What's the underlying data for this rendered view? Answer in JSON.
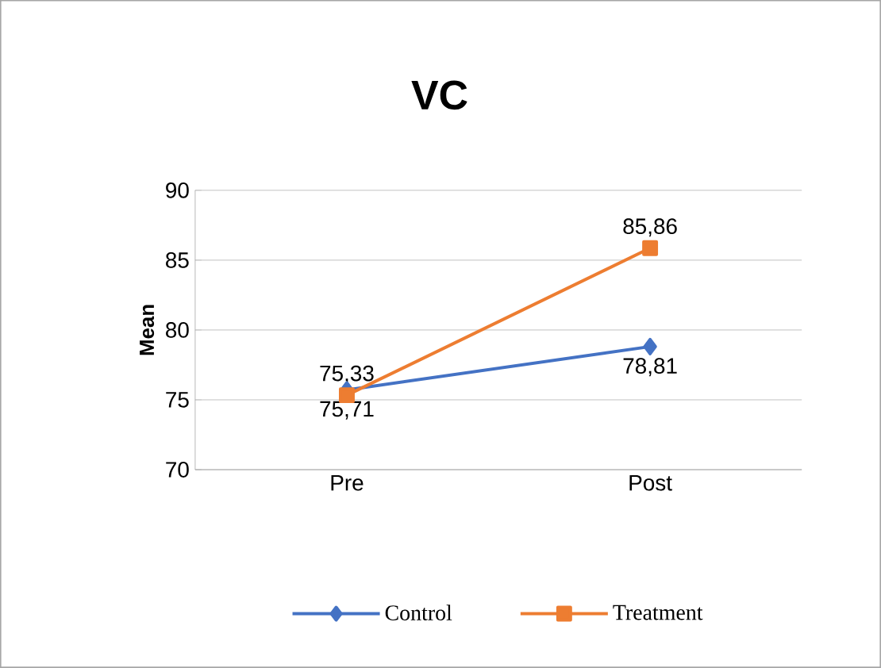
{
  "chart_data": {
    "type": "line",
    "title": "VC",
    "ylabel": "Mean",
    "categories": [
      "Pre",
      "Post"
    ],
    "series": [
      {
        "name": "Control",
        "color": "#4472c4",
        "marker": "diamond",
        "values": [
          75.71,
          78.81
        ],
        "value_labels": [
          "75,71",
          "78,81"
        ]
      },
      {
        "name": "Treatment",
        "color": "#ed7d31",
        "marker": "square",
        "values": [
          75.33,
          85.86
        ],
        "value_labels": [
          "75,33",
          "85,86"
        ]
      }
    ],
    "ylim": [
      70,
      90
    ],
    "yticks": [
      70,
      75,
      80,
      85,
      90
    ],
    "grid": "y",
    "legend": "bottom"
  }
}
